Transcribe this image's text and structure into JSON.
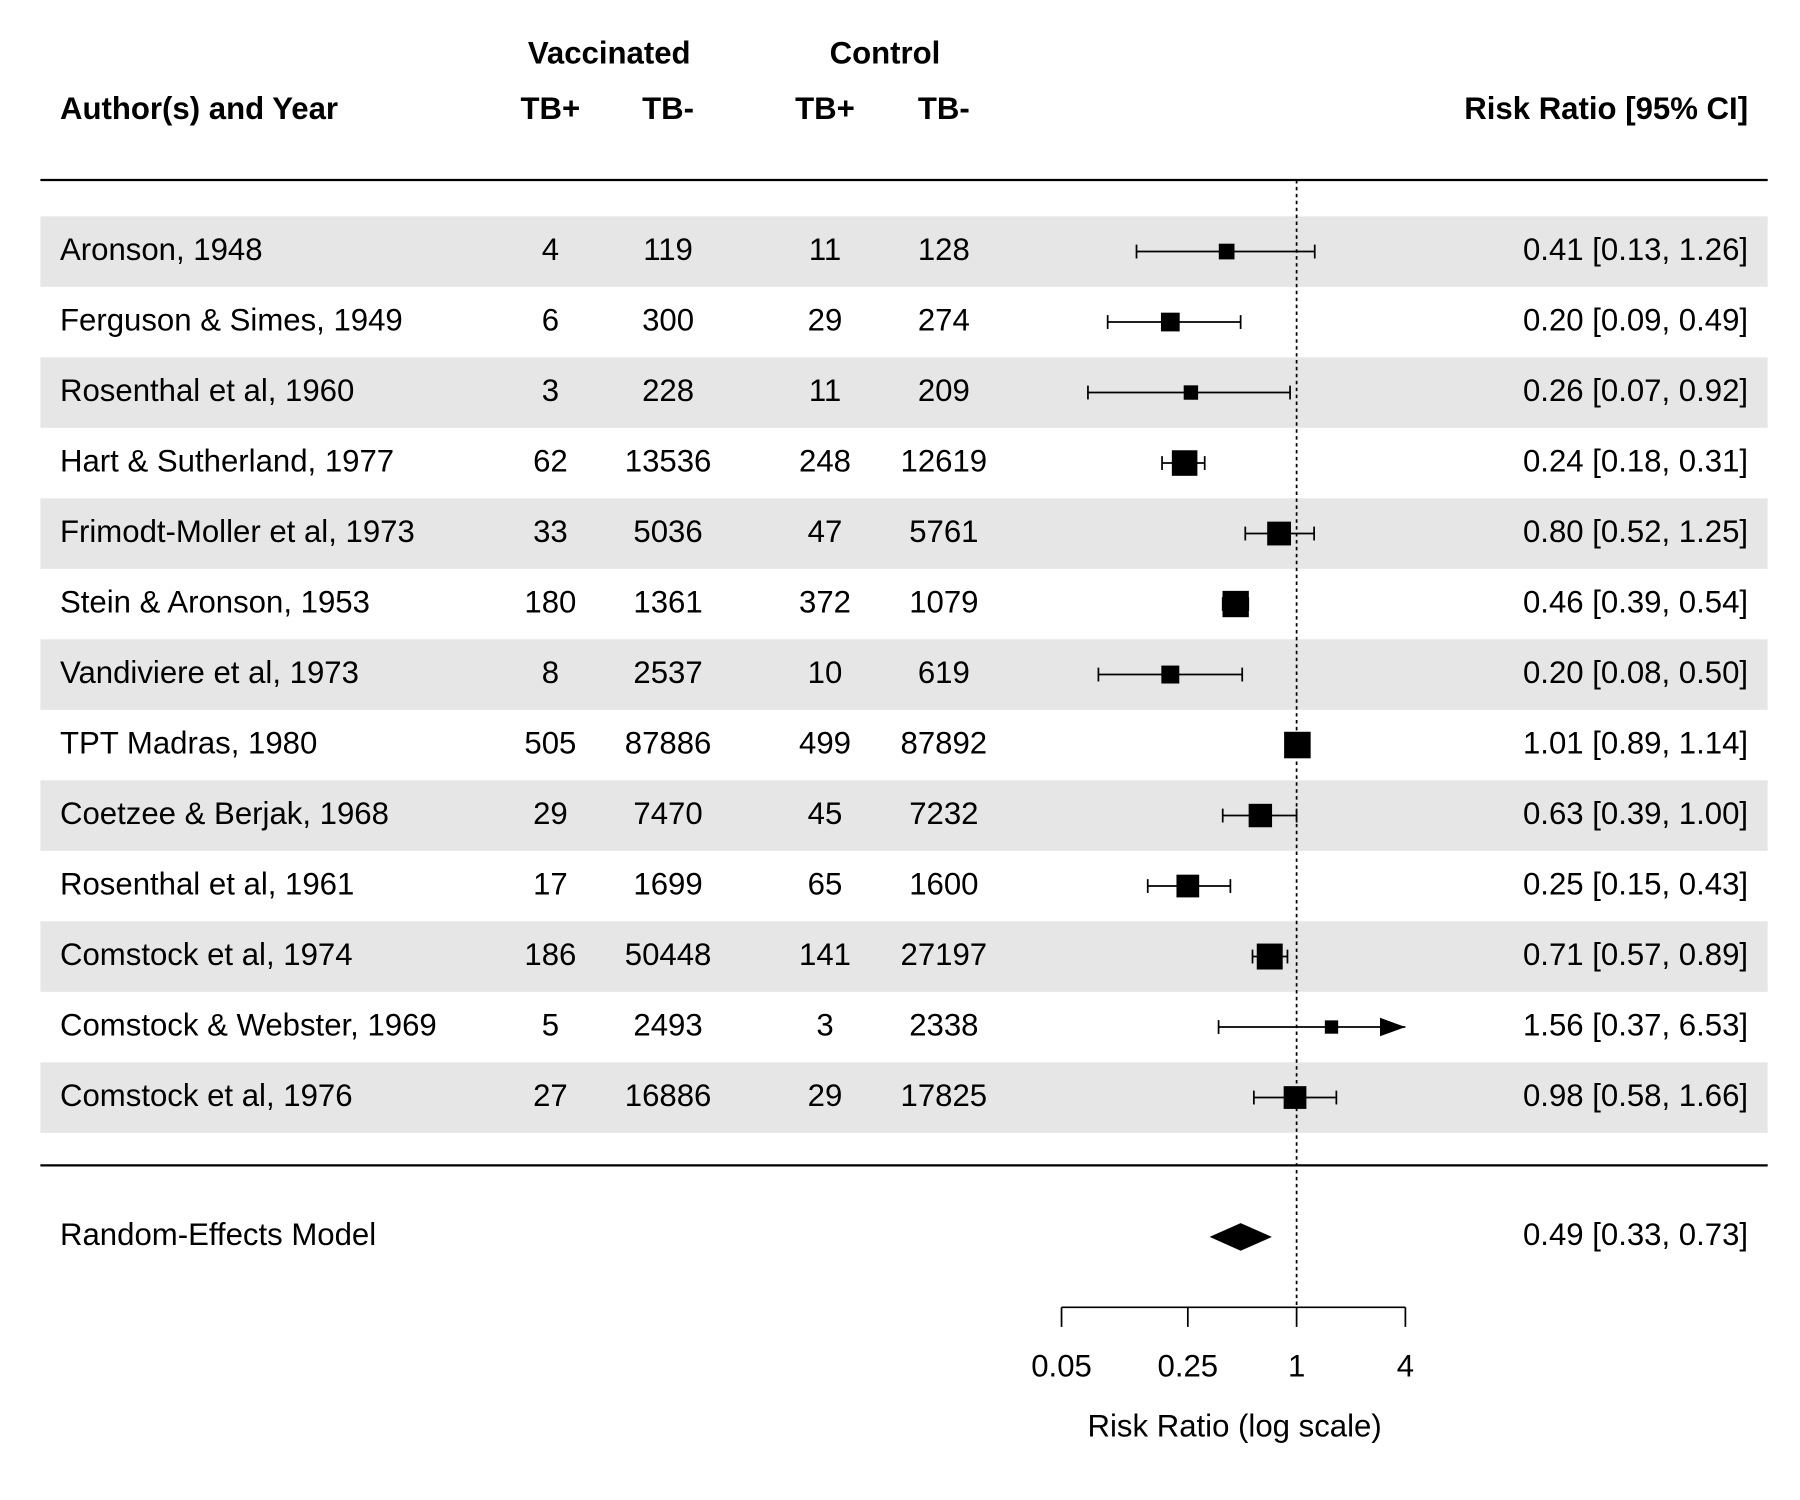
{
  "chart_data": {
    "type": "forest",
    "header": {
      "study": "Author(s) and Year",
      "groups": [
        "Vaccinated",
        "Control"
      ],
      "subheaders": [
        "TB+",
        "TB-",
        "TB+",
        "TB-"
      ],
      "estimate": "Risk Ratio [95% CI]"
    },
    "rows": [
      {
        "name": "Aronson, 1948",
        "vacc_pos": 4,
        "vacc_neg": 119,
        "ctrl_pos": 11,
        "ctrl_neg": 128
      },
      {
        "name": "Ferguson & Simes, 1949",
        "vacc_pos": 6,
        "vacc_neg": 300,
        "ctrl_pos": 29,
        "ctrl_neg": 274
      },
      {
        "name": "Rosenthal et al, 1960",
        "vacc_pos": 3,
        "vacc_neg": 228,
        "ctrl_pos": 11,
        "ctrl_neg": 209
      },
      {
        "name": "Hart & Sutherland, 1977",
        "vacc_pos": 62,
        "vacc_neg": 13536,
        "ctrl_pos": 248,
        "ctrl_neg": 12619
      },
      {
        "name": "Frimodt-Moller et al, 1973",
        "vacc_pos": 33,
        "vacc_neg": 5036,
        "ctrl_pos": 47,
        "ctrl_neg": 5761
      },
      {
        "name": "Stein & Aronson, 1953",
        "vacc_pos": 180,
        "vacc_neg": 1361,
        "ctrl_pos": 372,
        "ctrl_neg": 1079
      },
      {
        "name": "Vandiviere et al, 1973",
        "vacc_pos": 8,
        "vacc_neg": 2537,
        "ctrl_pos": 10,
        "ctrl_neg": 619
      },
      {
        "name": "TPT Madras, 1980",
        "vacc_pos": 505,
        "vacc_neg": 87886,
        "ctrl_pos": 499,
        "ctrl_neg": 87892
      },
      {
        "name": "Coetzee & Berjak, 1968",
        "vacc_pos": 29,
        "vacc_neg": 7470,
        "ctrl_pos": 45,
        "ctrl_neg": 7232
      },
      {
        "name": "Rosenthal et al, 1961",
        "vacc_pos": 17,
        "vacc_neg": 1699,
        "ctrl_pos": 65,
        "ctrl_neg": 1600
      },
      {
        "name": "Comstock et al, 1974",
        "vacc_pos": 186,
        "vacc_neg": 50448,
        "ctrl_pos": 141,
        "ctrl_neg": 27197
      },
      {
        "name": "Comstock & Webster, 1969",
        "vacc_pos": 5,
        "vacc_neg": 2493,
        "ctrl_pos": 3,
        "ctrl_neg": 2338
      },
      {
        "name": "Comstock et al, 1976",
        "vacc_pos": 27,
        "vacc_neg": 16886,
        "ctrl_pos": 29,
        "ctrl_neg": 17825
      }
    ],
    "estimates": [
      0.41,
      0.2,
      0.26,
      0.24,
      0.8,
      0.46,
      0.2,
      1.01,
      0.63,
      0.25,
      0.71,
      1.56,
      0.98
    ],
    "lower": [
      0.13,
      0.09,
      0.07,
      0.18,
      0.52,
      0.39,
      0.08,
      0.89,
      0.39,
      0.15,
      0.57,
      0.37,
      0.58
    ],
    "upper": [
      1.26,
      0.49,
      0.92,
      0.31,
      1.25,
      0.54,
      0.5,
      1.14,
      1.0,
      0.43,
      0.89,
      6.53,
      1.66
    ],
    "value_labels": [
      "0.41 [0.13, 1.26]",
      "0.20 [0.09, 0.49]",
      "0.26 [0.07, 0.92]",
      "0.24 [0.18, 0.31]",
      "0.80 [0.52, 1.25]",
      "0.46 [0.39, 0.54]",
      "0.20 [0.08, 0.50]",
      "1.01 [0.89, 1.14]",
      "0.63 [0.39, 1.00]",
      "0.25 [0.15, 0.43]",
      "0.71 [0.57, 0.89]",
      "1.56 [0.37, 6.53]",
      "0.98 [0.58, 1.66]"
    ],
    "summary": {
      "label": "Random-Effects Model",
      "estimate": 0.49,
      "lower": 0.33,
      "upper": 0.73,
      "value_label": "0.49 [0.33, 0.73]"
    },
    "xlim": [
      0.05,
      4
    ],
    "xticks": [
      0.05,
      0.25,
      1,
      4
    ],
    "log_scale": true,
    "refline": 1,
    "xlabel": "Risk Ratio (log scale)",
    "color": "#000000",
    "row_shading": "#e6e6e6"
  }
}
